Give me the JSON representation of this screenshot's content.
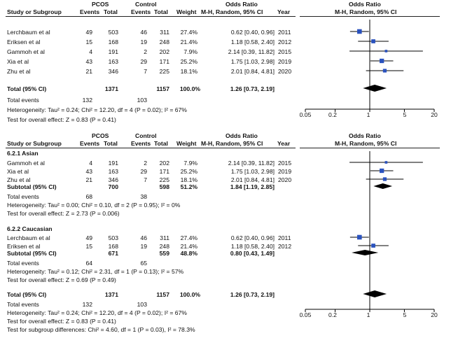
{
  "colors": {
    "square": "#2a52be",
    "diamond": "#000000",
    "line": "#000000"
  },
  "top": {
    "group_headers": {
      "pcos": "PCOS",
      "control": "Control",
      "or_left": "Odds Ratio",
      "or_right": "Odds Ratio"
    },
    "col_headers": {
      "study": "Study or Subgroup",
      "events1": "Events",
      "total1": "Total",
      "events2": "Events",
      "total2": "Total",
      "weight": "Weight",
      "method_left": "M-H, Random, 95% CI",
      "year": "Year",
      "method_right": "M-H, Random, 95% CI"
    },
    "rows": [
      {
        "study": "Lerchbaum et al",
        "e1": "49",
        "t1": "503",
        "e2": "46",
        "t2": "311",
        "w": "27.4%",
        "ci": "0.62 [0.40, 0.96]",
        "year": "2011"
      },
      {
        "study": "Eriksen et al",
        "e1": "15",
        "t1": "168",
        "e2": "19",
        "t2": "248",
        "w": "21.4%",
        "ci": "1.18 [0.58, 2.40]",
        "year": "2012"
      },
      {
        "study": "Gammoh et al",
        "e1": "4",
        "t1": "191",
        "e2": "2",
        "t2": "202",
        "w": "7.9%",
        "ci": "2.14 [0.39, 11.82]",
        "year": "2015"
      },
      {
        "study": "Xia et al",
        "e1": "43",
        "t1": "163",
        "e2": "29",
        "t2": "171",
        "w": "25.2%",
        "ci": "1.75 [1.03, 2.98]",
        "year": "2019"
      },
      {
        "study": "Zhu et al",
        "e1": "21",
        "t1": "346",
        "e2": "7",
        "t2": "225",
        "w": "18.1%",
        "ci": "2.01 [0.84, 4.81]",
        "year": "2020"
      }
    ],
    "total": {
      "label": "Total (95% CI)",
      "t1": "1371",
      "t2": "1157",
      "w": "100.0%",
      "ci": "1.26 [0.73, 2.19]"
    },
    "total_events": {
      "label": "Total events",
      "e1": "132",
      "e2": "103"
    },
    "heterogeneity": "Heterogeneity: Tau² = 0.24; Chi² = 12.20, df = 4 (P = 0.02); I² = 67%",
    "overall_effect": "Test for overall effect: Z = 0.83 (P = 0.41)",
    "axis_ticks": [
      "0.05",
      "0.2",
      "1",
      "5",
      "20"
    ]
  },
  "bottom": {
    "group_headers": {
      "pcos": "PCOS",
      "control": "Control",
      "or_left": "Odds Ratio",
      "or_right": "Odds Ratio"
    },
    "col_headers": {
      "study": "Study or Subgroup",
      "events1": "Events",
      "total1": "Total",
      "events2": "Events",
      "total2": "Total",
      "weight": "Weight",
      "method_left": "M-H, Random, 95% CI",
      "year": "Year",
      "method_right": "M-H, Random, 95% CI"
    },
    "asian": {
      "title": "6.2.1 Asian",
      "rows": [
        {
          "study": "Gammoh et al",
          "e1": "4",
          "t1": "191",
          "e2": "2",
          "t2": "202",
          "w": "7.9%",
          "ci": "2.14 [0.39, 11.82]",
          "year": "2015"
        },
        {
          "study": "Xia et al",
          "e1": "43",
          "t1": "163",
          "e2": "29",
          "t2": "171",
          "w": "25.2%",
          "ci": "1.75 [1.03, 2.98]",
          "year": "2019"
        },
        {
          "study": "Zhu et al",
          "e1": "21",
          "t1": "346",
          "e2": "7",
          "t2": "225",
          "w": "18.1%",
          "ci": "2.01 [0.84, 4.81]",
          "year": "2020"
        }
      ],
      "subtotal": {
        "label": "Subtotal (95% CI)",
        "t1": "700",
        "t2": "598",
        "w": "51.2%",
        "ci": "1.84 [1.19, 2.85]"
      },
      "total_events": {
        "label": "Total events",
        "e1": "68",
        "e2": "38"
      },
      "heterogeneity": "Heterogeneity: Tau² = 0.00; Chi² = 0.10, df = 2 (P = 0.95); I² = 0%",
      "overall_effect": "Test for overall effect: Z = 2.73 (P = 0.006)"
    },
    "caucasian": {
      "title": "6.2.2 Caucasian",
      "rows": [
        {
          "study": "Lerchbaum et al",
          "e1": "49",
          "t1": "503",
          "e2": "46",
          "t2": "311",
          "w": "27.4%",
          "ci": "0.62 [0.40, 0.96]",
          "year": "2011"
        },
        {
          "study": "Eriksen et al",
          "e1": "15",
          "t1": "168",
          "e2": "19",
          "t2": "248",
          "w": "21.4%",
          "ci": "1.18 [0.58, 2.40]",
          "year": "2012"
        }
      ],
      "subtotal": {
        "label": "Subtotal (95% CI)",
        "t1": "671",
        "t2": "559",
        "w": "48.8%",
        "ci": "0.80 [0.43, 1.49]"
      },
      "total_events": {
        "label": "Total events",
        "e1": "64",
        "e2": "65"
      },
      "heterogeneity": "Heterogeneity: Tau² = 0.12; Chi² = 2.31, df = 1 (P = 0.13); I² = 57%",
      "overall_effect": "Test for overall effect: Z = 0.69 (P = 0.49)"
    },
    "total": {
      "label": "Total (95% CI)",
      "t1": "1371",
      "t2": "1157",
      "w": "100.0%",
      "ci": "1.26 [0.73, 2.19]"
    },
    "total_events": {
      "label": "Total events",
      "e1": "132",
      "e2": "103"
    },
    "heterogeneity": "Heterogeneity: Tau² = 0.24; Chi² = 12.20, df = 4 (P = 0.02); I² = 67%",
    "overall_effect": "Test for overall effect: Z = 0.83 (P = 0.41)",
    "subgroup_diff": "Test for subgroup differences: Chi² = 4.60, df = 1 (P = 0.03), I² = 78.3%",
    "axis_ticks": [
      "0.05",
      "0.2",
      "1",
      "5",
      "20"
    ]
  },
  "chart_data": [
    {
      "type": "forest",
      "scale": "log",
      "xlim": [
        0.05,
        20
      ],
      "x_ticks": [
        0.05,
        0.2,
        1,
        5,
        20
      ],
      "studies": [
        {
          "name": "Lerchbaum et al",
          "or": 0.62,
          "lo": 0.4,
          "hi": 0.96,
          "weight": 27.4
        },
        {
          "name": "Eriksen et al",
          "or": 1.18,
          "lo": 0.58,
          "hi": 2.4,
          "weight": 21.4
        },
        {
          "name": "Gammoh et al",
          "or": 2.14,
          "lo": 0.39,
          "hi": 11.82,
          "weight": 7.9
        },
        {
          "name": "Xia et al",
          "or": 1.75,
          "lo": 1.03,
          "hi": 2.98,
          "weight": 25.2
        },
        {
          "name": "Zhu et al",
          "or": 2.01,
          "lo": 0.84,
          "hi": 4.81,
          "weight": 18.1
        }
      ],
      "pooled": {
        "or": 1.26,
        "lo": 0.73,
        "hi": 2.19
      }
    },
    {
      "type": "forest",
      "scale": "log",
      "xlim": [
        0.05,
        20
      ],
      "x_ticks": [
        0.05,
        0.2,
        1,
        5,
        20
      ],
      "subgroups": [
        {
          "name": "6.2.1 Asian",
          "studies": [
            {
              "name": "Gammoh et al",
              "or": 2.14,
              "lo": 0.39,
              "hi": 11.82,
              "weight": 7.9
            },
            {
              "name": "Xia et al",
              "or": 1.75,
              "lo": 1.03,
              "hi": 2.98,
              "weight": 25.2
            },
            {
              "name": "Zhu et al",
              "or": 2.01,
              "lo": 0.84,
              "hi": 4.81,
              "weight": 18.1
            }
          ],
          "pooled": {
            "or": 1.84,
            "lo": 1.19,
            "hi": 2.85
          }
        },
        {
          "name": "6.2.2 Caucasian",
          "studies": [
            {
              "name": "Lerchbaum et al",
              "or": 0.62,
              "lo": 0.4,
              "hi": 0.96,
              "weight": 27.4
            },
            {
              "name": "Eriksen et al",
              "or": 1.18,
              "lo": 0.58,
              "hi": 2.4,
              "weight": 21.4
            }
          ],
          "pooled": {
            "or": 0.8,
            "lo": 0.43,
            "hi": 1.49
          }
        }
      ],
      "pooled": {
        "or": 1.26,
        "lo": 0.73,
        "hi": 2.19
      }
    }
  ]
}
